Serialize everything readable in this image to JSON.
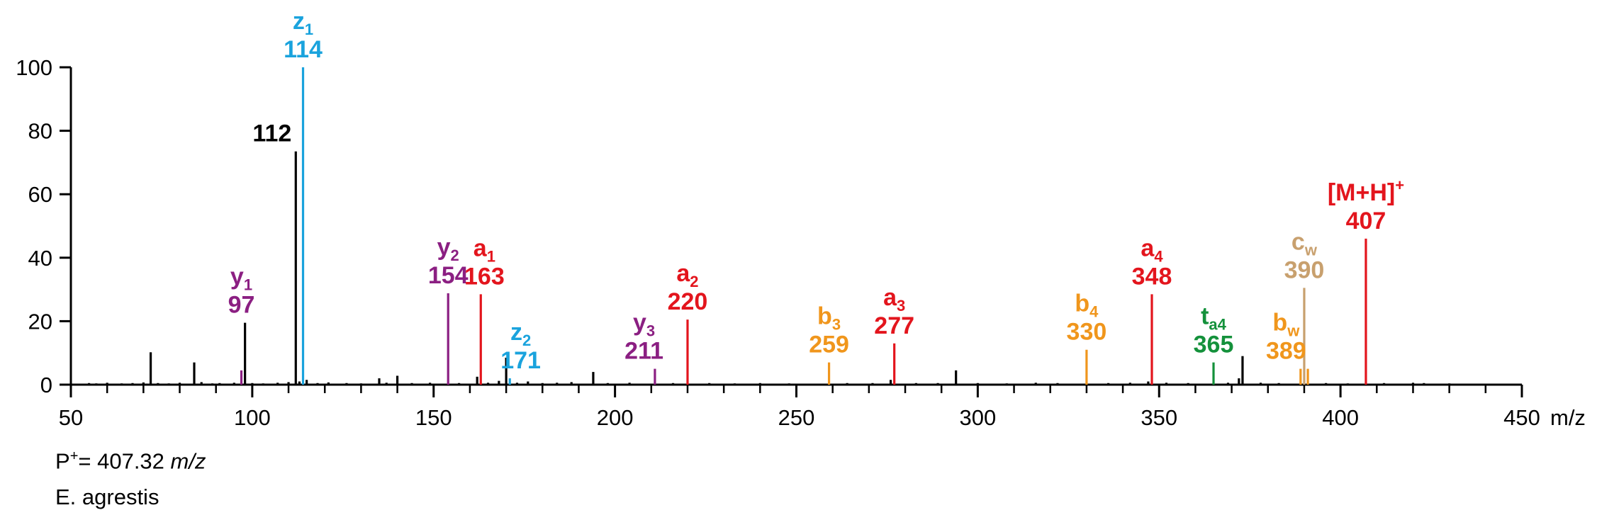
{
  "chart_data": {
    "type": "bar",
    "xlabel": "m/z",
    "ylabel": "",
    "xlim": [
      50,
      450
    ],
    "ylim": [
      0,
      100
    ],
    "x_ticks": [
      "50",
      "100",
      "150",
      "200",
      "250",
      "300",
      "350",
      "400",
      "450"
    ],
    "y_ticks": [
      "0",
      "20",
      "40",
      "60",
      "80",
      "100"
    ],
    "series_colors": {
      "black": "#000000",
      "blue": "#1aa3dd",
      "purple": "#8b1f82",
      "red": "#e3151d",
      "orange": "#f0961c",
      "green": "#14913b",
      "tan": "#c8a06e"
    },
    "peaks": [
      {
        "mz": 55,
        "intensity": 0.5,
        "color": "black"
      },
      {
        "mz": 57,
        "intensity": 0.4,
        "color": "black"
      },
      {
        "mz": 60,
        "intensity": 0.6,
        "color": "black"
      },
      {
        "mz": 64,
        "intensity": 0.4,
        "color": "black"
      },
      {
        "mz": 67,
        "intensity": 0.5,
        "color": "black"
      },
      {
        "mz": 70,
        "intensity": 0.7,
        "color": "black"
      },
      {
        "mz": 72,
        "intensity": 10.2,
        "color": "black"
      },
      {
        "mz": 74,
        "intensity": 0.5,
        "color": "black"
      },
      {
        "mz": 77,
        "intensity": 0.4,
        "color": "black"
      },
      {
        "mz": 80,
        "intensity": 0.6,
        "color": "black"
      },
      {
        "mz": 84,
        "intensity": 7.0,
        "color": "black"
      },
      {
        "mz": 86,
        "intensity": 0.8,
        "color": "black"
      },
      {
        "mz": 89,
        "intensity": 0.4,
        "color": "black"
      },
      {
        "mz": 91,
        "intensity": 0.5,
        "color": "black"
      },
      {
        "mz": 95,
        "intensity": 0.6,
        "color": "black"
      },
      {
        "mz": 97,
        "intensity": 4.5,
        "color": "purple"
      },
      {
        "mz": 98,
        "intensity": 19.5,
        "color": "black"
      },
      {
        "mz": 100,
        "intensity": 0.5,
        "color": "black"
      },
      {
        "mz": 103,
        "intensity": 0.4,
        "color": "black"
      },
      {
        "mz": 107,
        "intensity": 0.6,
        "color": "black"
      },
      {
        "mz": 110,
        "intensity": 0.8,
        "color": "black"
      },
      {
        "mz": 112,
        "intensity": 73.5,
        "color": "black"
      },
      {
        "mz": 113,
        "intensity": 1.0,
        "color": "black"
      },
      {
        "mz": 114,
        "intensity": 100,
        "color": "blue"
      },
      {
        "mz": 115,
        "intensity": 1.5,
        "color": "black"
      },
      {
        "mz": 118,
        "intensity": 0.5,
        "color": "black"
      },
      {
        "mz": 121,
        "intensity": 0.7,
        "color": "black"
      },
      {
        "mz": 126,
        "intensity": 0.5,
        "color": "black"
      },
      {
        "mz": 130,
        "intensity": 0.4,
        "color": "black"
      },
      {
        "mz": 135,
        "intensity": 2.0,
        "color": "black"
      },
      {
        "mz": 137,
        "intensity": 0.6,
        "color": "black"
      },
      {
        "mz": 140,
        "intensity": 2.8,
        "color": "black"
      },
      {
        "mz": 144,
        "intensity": 0.5,
        "color": "black"
      },
      {
        "mz": 149,
        "intensity": 0.6,
        "color": "black"
      },
      {
        "mz": 154,
        "intensity": 28.8,
        "color": "purple"
      },
      {
        "mz": 157,
        "intensity": 0.5,
        "color": "black"
      },
      {
        "mz": 162,
        "intensity": 2.5,
        "color": "black"
      },
      {
        "mz": 163,
        "intensity": 28.5,
        "color": "red"
      },
      {
        "mz": 165,
        "intensity": 0.6,
        "color": "black"
      },
      {
        "mz": 168,
        "intensity": 1.2,
        "color": "black"
      },
      {
        "mz": 170,
        "intensity": 8.5,
        "color": "black"
      },
      {
        "mz": 171,
        "intensity": 2.0,
        "color": "blue"
      },
      {
        "mz": 173,
        "intensity": 0.6,
        "color": "black"
      },
      {
        "mz": 176,
        "intensity": 1.0,
        "color": "black"
      },
      {
        "mz": 180,
        "intensity": 0.5,
        "color": "black"
      },
      {
        "mz": 184,
        "intensity": 0.6,
        "color": "black"
      },
      {
        "mz": 188,
        "intensity": 0.8,
        "color": "black"
      },
      {
        "mz": 194,
        "intensity": 4.0,
        "color": "black"
      },
      {
        "mz": 198,
        "intensity": 0.5,
        "color": "black"
      },
      {
        "mz": 204,
        "intensity": 0.6,
        "color": "black"
      },
      {
        "mz": 211,
        "intensity": 5.0,
        "color": "purple"
      },
      {
        "mz": 216,
        "intensity": 0.5,
        "color": "black"
      },
      {
        "mz": 220,
        "intensity": 20.5,
        "color": "red"
      },
      {
        "mz": 226,
        "intensity": 0.5,
        "color": "black"
      },
      {
        "mz": 233,
        "intensity": 0.4,
        "color": "black"
      },
      {
        "mz": 240,
        "intensity": 0.5,
        "color": "black"
      },
      {
        "mz": 248,
        "intensity": 0.4,
        "color": "black"
      },
      {
        "mz": 259,
        "intensity": 7.0,
        "color": "orange"
      },
      {
        "mz": 264,
        "intensity": 0.5,
        "color": "black"
      },
      {
        "mz": 271,
        "intensity": 0.5,
        "color": "black"
      },
      {
        "mz": 276,
        "intensity": 1.5,
        "color": "black"
      },
      {
        "mz": 277,
        "intensity": 13.0,
        "color": "red"
      },
      {
        "mz": 283,
        "intensity": 0.5,
        "color": "black"
      },
      {
        "mz": 289,
        "intensity": 0.5,
        "color": "black"
      },
      {
        "mz": 294,
        "intensity": 4.5,
        "color": "black"
      },
      {
        "mz": 300,
        "intensity": 0.5,
        "color": "black"
      },
      {
        "mz": 308,
        "intensity": 0.4,
        "color": "black"
      },
      {
        "mz": 316,
        "intensity": 0.6,
        "color": "black"
      },
      {
        "mz": 322,
        "intensity": 0.5,
        "color": "black"
      },
      {
        "mz": 330,
        "intensity": 11.0,
        "color": "orange"
      },
      {
        "mz": 336,
        "intensity": 0.5,
        "color": "black"
      },
      {
        "mz": 342,
        "intensity": 0.6,
        "color": "black"
      },
      {
        "mz": 347,
        "intensity": 1.0,
        "color": "black"
      },
      {
        "mz": 348,
        "intensity": 28.5,
        "color": "red"
      },
      {
        "mz": 352,
        "intensity": 0.6,
        "color": "black"
      },
      {
        "mz": 358,
        "intensity": 0.5,
        "color": "black"
      },
      {
        "mz": 365,
        "intensity": 7.0,
        "color": "green"
      },
      {
        "mz": 369,
        "intensity": 0.6,
        "color": "black"
      },
      {
        "mz": 372,
        "intensity": 2.0,
        "color": "black"
      },
      {
        "mz": 373,
        "intensity": 9.0,
        "color": "black"
      },
      {
        "mz": 378,
        "intensity": 0.6,
        "color": "black"
      },
      {
        "mz": 383,
        "intensity": 0.5,
        "color": "black"
      },
      {
        "mz": 389,
        "intensity": 5.0,
        "color": "orange"
      },
      {
        "mz": 390,
        "intensity": 30.5,
        "color": "tan"
      },
      {
        "mz": 391,
        "intensity": 5.0,
        "color": "orange"
      },
      {
        "mz": 396,
        "intensity": 0.5,
        "color": "black"
      },
      {
        "mz": 402,
        "intensity": 0.4,
        "color": "black"
      },
      {
        "mz": 407,
        "intensity": 46.0,
        "color": "red"
      },
      {
        "mz": 412,
        "intensity": 0.5,
        "color": "black"
      },
      {
        "mz": 420,
        "intensity": 0.6,
        "color": "black"
      },
      {
        "mz": 423,
        "intensity": 0.5,
        "color": "black"
      },
      {
        "mz": 430,
        "intensity": 0.4,
        "color": "black"
      }
    ],
    "annotations": [
      {
        "ion": "z",
        "sub": "1",
        "value": "114",
        "color": "blue",
        "mz": 114,
        "intensity": 100
      },
      {
        "ion": "",
        "sub": "",
        "value": "112",
        "color": "black",
        "mz": 112,
        "intensity": 73.5,
        "anchor": "end"
      },
      {
        "ion": "y",
        "sub": "1",
        "value": "97",
        "color": "purple",
        "mz": 97,
        "intensity": 19.5
      },
      {
        "ion": "y",
        "sub": "2",
        "value": "154",
        "color": "purple",
        "mz": 154,
        "intensity": 28.8
      },
      {
        "ion": "a",
        "sub": "1",
        "value": "163",
        "color": "red",
        "mz": 164,
        "intensity": 28.5
      },
      {
        "ion": "z",
        "sub": "2",
        "value": "171",
        "color": "blue",
        "mz": 174,
        "intensity": 2.0
      },
      {
        "ion": "y",
        "sub": "3",
        "value": "211",
        "color": "purple",
        "mz": 208,
        "intensity": 5.0
      },
      {
        "ion": "a",
        "sub": "2",
        "value": "220",
        "color": "red",
        "mz": 220,
        "intensity": 20.5
      },
      {
        "ion": "b",
        "sub": "3",
        "value": "259",
        "color": "orange",
        "mz": 259,
        "intensity": 7.0
      },
      {
        "ion": "a",
        "sub": "3",
        "value": "277",
        "color": "red",
        "mz": 277,
        "intensity": 13.0
      },
      {
        "ion": "b",
        "sub": "4",
        "value": "330",
        "color": "orange",
        "mz": 330,
        "intensity": 11.0
      },
      {
        "ion": "a",
        "sub": "4",
        "value": "348",
        "color": "red",
        "mz": 348,
        "intensity": 28.5
      },
      {
        "ion": "t",
        "sub": "a4",
        "value": "365",
        "color": "green",
        "mz": 365,
        "intensity": 7.0
      },
      {
        "ion": "b",
        "sub": "w",
        "value": "389",
        "color": "orange",
        "mz": 385,
        "intensity": 5.0
      },
      {
        "ion": "c",
        "sub": "w",
        "value": "390",
        "color": "tan",
        "mz": 390,
        "intensity": 30.5
      },
      {
        "ion": "[M+H]",
        "sup": "+",
        "value": "407",
        "color": "red",
        "mz": 407,
        "intensity": 46.0
      }
    ]
  },
  "footnote": {
    "precursor_prefix": "P",
    "precursor_sup": "+",
    "precursor_value": "= 407.32 ",
    "precursor_unit": "m/z",
    "species": "E. agrestis"
  }
}
